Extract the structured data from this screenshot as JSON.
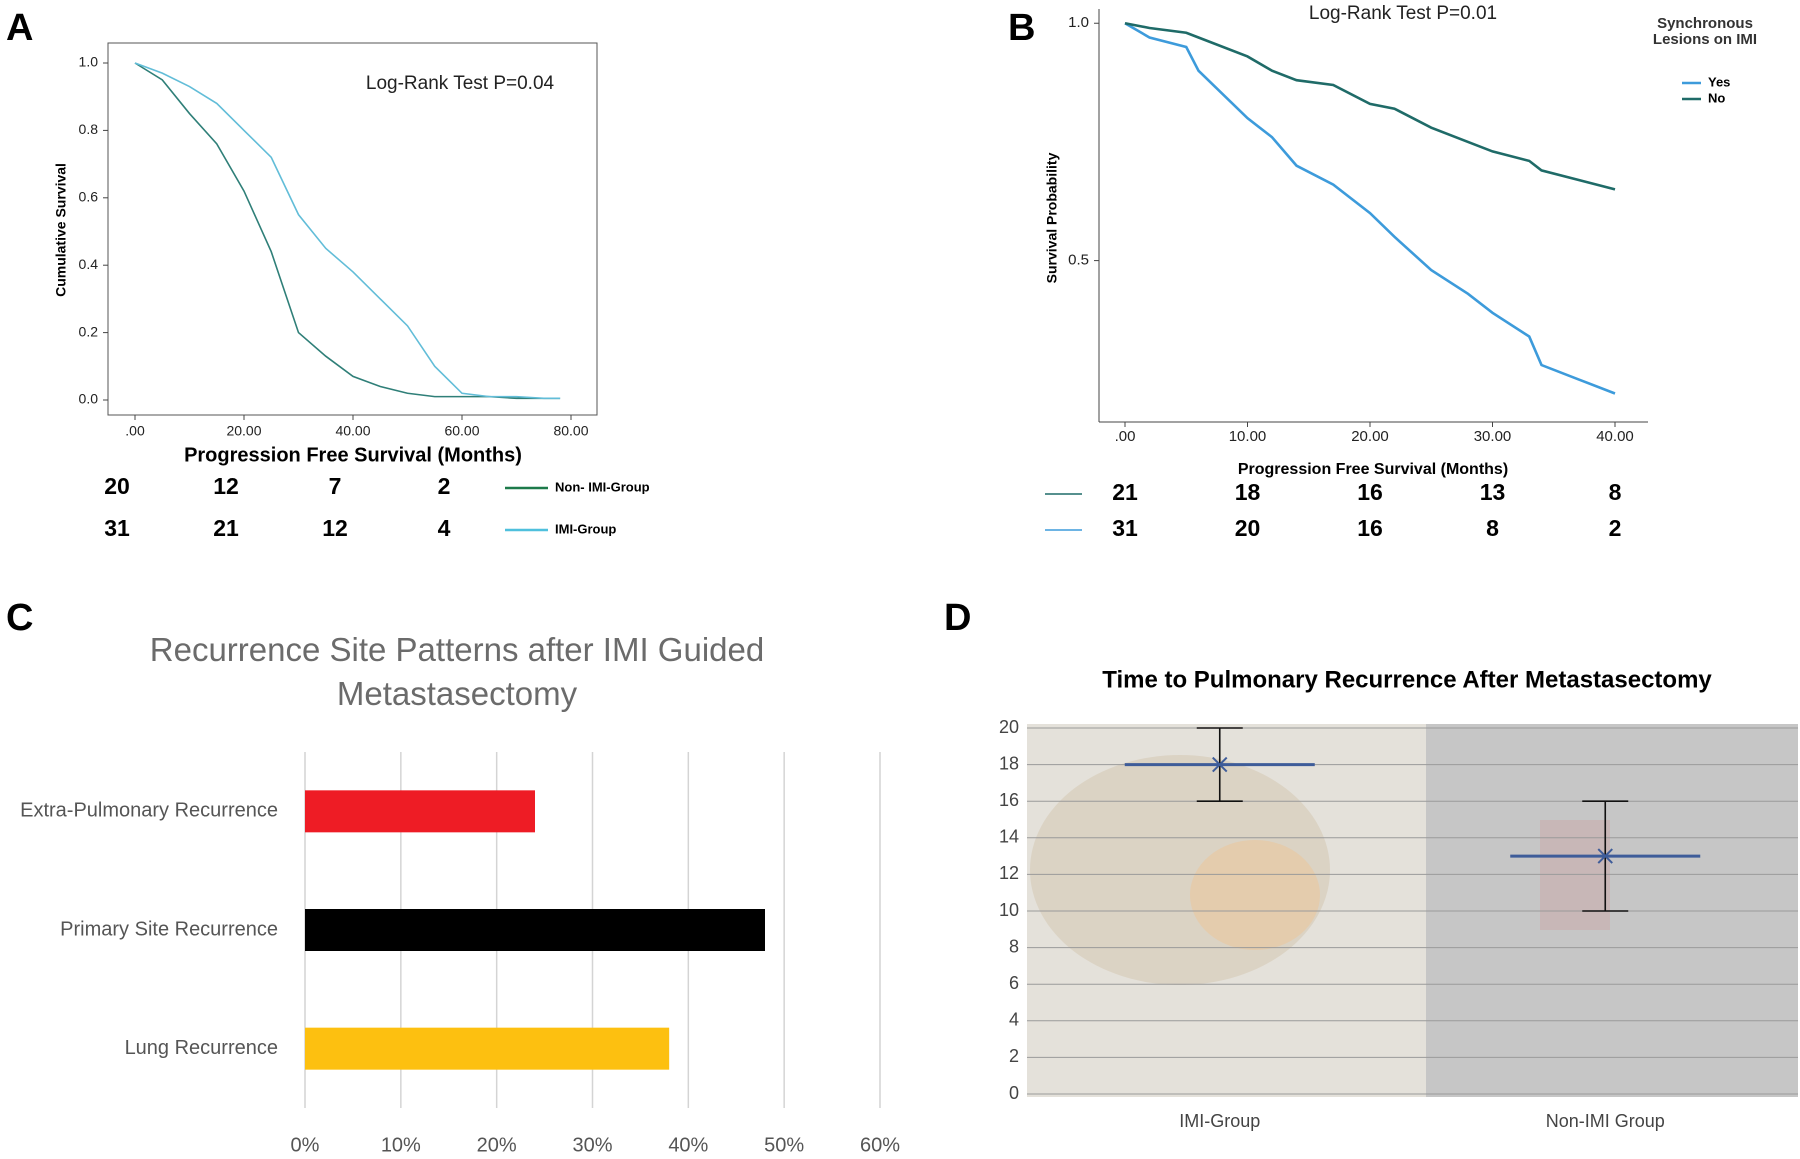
{
  "chart_data": [
    {
      "type": "line",
      "panel_label": "A",
      "annotation": "Log-Rank Test P=0.04",
      "xlabel": "Progression Free Survival (Months)",
      "ylabel": "Cumulative Survival",
      "x": [
        0,
        5,
        10,
        15,
        20,
        25,
        30,
        35,
        40,
        45,
        50,
        55,
        60,
        65,
        70,
        75,
        78
      ],
      "series": [
        {
          "name": "Non- IMI-Group",
          "color": "#2f7f78",
          "legend_color": "#1d7a4a",
          "values": [
            1.0,
            0.95,
            0.85,
            0.76,
            0.62,
            0.44,
            0.2,
            0.13,
            0.07,
            0.04,
            0.02,
            0.01,
            0.01,
            0.01,
            0.005,
            0.005,
            0.005
          ],
          "at_risk": [
            20,
            12,
            7,
            2
          ]
        },
        {
          "name": "IMI-Group",
          "color": "#62bdd8",
          "legend_color": "#4fc0dd",
          "values": [
            1.0,
            0.97,
            0.93,
            0.88,
            0.8,
            0.72,
            0.55,
            0.45,
            0.38,
            0.3,
            0.22,
            0.1,
            0.02,
            0.01,
            0.01,
            0.005,
            0.005
          ],
          "at_risk": [
            31,
            21,
            12,
            4
          ]
        }
      ],
      "xlim": [
        0,
        80
      ],
      "xticks": [
        {
          "value": 0,
          "label": ".00"
        },
        {
          "value": 20,
          "label": "20.00"
        },
        {
          "value": 40,
          "label": "40.00"
        },
        {
          "value": 60,
          "label": "60.00"
        },
        {
          "value": 80,
          "label": "80.00"
        }
      ],
      "ylim": [
        0,
        1
      ],
      "yticks": [
        {
          "value": 0,
          "label": "0.0"
        },
        0.2,
        0.4,
        0.6,
        0.8,
        {
          "value": 1,
          "label": "1.0"
        }
      ]
    },
    {
      "type": "line",
      "panel_label": "B",
      "annotation": "Log-Rank Test P=0.01",
      "xlabel": "Progression Free Survival (Months)",
      "ylabel": "Survival Probability",
      "legend_title": "Synchronous Lesions on IMI",
      "x": [
        0,
        2,
        5,
        6,
        10,
        12,
        14,
        17,
        20,
        22,
        25,
        28,
        30,
        33,
        34,
        37,
        40
      ],
      "series": [
        {
          "name": "Yes",
          "color": "#3d9bdb",
          "legend_color": "#3d9bdb",
          "values": [
            1.0,
            0.97,
            0.95,
            0.9,
            0.8,
            0.76,
            0.7,
            0.66,
            0.6,
            0.55,
            0.48,
            0.43,
            0.39,
            0.34,
            0.28,
            0.25,
            0.22
          ],
          "at_risk": [
            31,
            20,
            16,
            8,
            2
          ]
        },
        {
          "name": "No",
          "color": "#1f6b68",
          "legend_color": "#1f6b68",
          "values": [
            1.0,
            0.99,
            0.98,
            0.97,
            0.93,
            0.9,
            0.88,
            0.87,
            0.83,
            0.82,
            0.78,
            0.75,
            0.73,
            0.71,
            0.69,
            0.67,
            0.65
          ],
          "at_risk": [
            21,
            18,
            16,
            13,
            8
          ]
        }
      ],
      "xlim": [
        0,
        40
      ],
      "xticks": [
        {
          "value": 0,
          "label": ".00"
        },
        {
          "value": 10,
          "label": "10.00"
        },
        {
          "value": 20,
          "label": "20.00"
        },
        {
          "value": 30,
          "label": "30.00"
        },
        {
          "value": 40,
          "label": "40.00"
        }
      ],
      "ylim": [
        0.16,
        1.03
      ],
      "yticks": [
        0.5,
        {
          "value": 1,
          "label": "1.0"
        }
      ]
    },
    {
      "type": "hbar",
      "panel_label": "C",
      "title": "Recurrence Site Patterns after IMI Guided Metastasectomy",
      "categories": [
        "Extra-Pulmonary Recurrence",
        "Primary Site Recurrence",
        "Lung Recurrence"
      ],
      "values": [
        24,
        48,
        38
      ],
      "colors": [
        "#ee1c25",
        "#000000",
        "#fdc010"
      ],
      "xlim": [
        0,
        60
      ],
      "xticks": [
        {
          "value": 0,
          "label": "0%"
        },
        {
          "value": 10,
          "label": "10%"
        },
        {
          "value": 20,
          "label": "20%"
        },
        {
          "value": 30,
          "label": "30%"
        },
        {
          "value": 40,
          "label": "40%"
        },
        {
          "value": 50,
          "label": "50%"
        },
        {
          "value": 60,
          "label": "60%"
        }
      ],
      "grid": true
    },
    {
      "type": "errorbar",
      "panel_label": "D",
      "title": "Time to Pulmonary Recurrence After Metastasectomy",
      "categories": [
        "IMI-Group",
        "Non-IMI Group"
      ],
      "values": [
        18,
        13
      ],
      "errors": [
        2,
        3
      ],
      "color": "#3e5c99",
      "ylim": [
        0,
        20
      ],
      "yticks": [
        0,
        2,
        4,
        6,
        8,
        10,
        12,
        14,
        16,
        18,
        20
      ],
      "grid": true
    }
  ]
}
